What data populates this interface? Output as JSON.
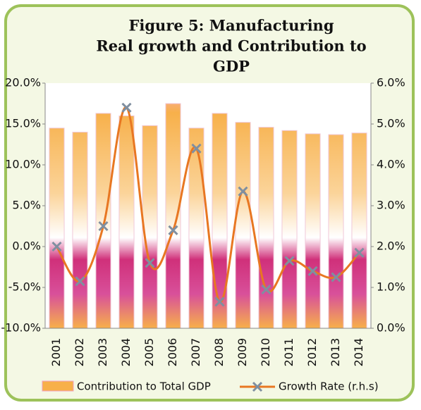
{
  "chart_data": {
    "type": "bar-line",
    "title": [
      "Figure 5: Manufacturing",
      "Real growth and Contribution to",
      "GDP"
    ],
    "categories": [
      "2001",
      "2002",
      "2003",
      "2004",
      "2005",
      "2006",
      "2007",
      "2008",
      "2009",
      "2010",
      "2011",
      "2012",
      "2013",
      "2014"
    ],
    "series": [
      {
        "name": "Contribution to Total GDP",
        "type": "bar",
        "color": "#f7b04a",
        "values": [
          14.5,
          14.0,
          16.3,
          16.0,
          14.8,
          17.5,
          14.5,
          16.3,
          15.2,
          14.6,
          14.2,
          13.8,
          13.7,
          13.9
        ]
      },
      {
        "name": "Growth Rate (r.h.s)",
        "type": "line",
        "axis": "y2",
        "color": "#e87722",
        "marker_color": "#7f8fa0",
        "values": [
          2.0,
          1.15,
          2.5,
          5.4,
          1.6,
          2.4,
          4.4,
          0.65,
          3.35,
          0.95,
          1.65,
          1.4,
          1.25,
          1.85
        ]
      }
    ],
    "ylim": [
      -10,
      20
    ],
    "yticks": [
      {
        "value": -10,
        "label": "-10.0%"
      },
      {
        "value": -5,
        "label": "-5.0%"
      },
      {
        "value": 0,
        "label": "0.0%"
      },
      {
        "value": 5,
        "label": "5.0%"
      },
      {
        "value": 10,
        "label": "10.0%"
      },
      {
        "value": 15,
        "label": "15.0%"
      },
      {
        "value": 20,
        "label": "20.0%"
      }
    ],
    "y2lim": [
      0,
      6
    ],
    "y2ticks": [
      {
        "value": 0,
        "label": "0.0%"
      },
      {
        "value": 1,
        "label": "1.0%"
      },
      {
        "value": 2,
        "label": "2.0%"
      },
      {
        "value": 3,
        "label": "3.0%"
      },
      {
        "value": 4,
        "label": "4.0%"
      },
      {
        "value": 5,
        "label": "5.0%"
      },
      {
        "value": 6,
        "label": "6.0%"
      }
    ]
  }
}
